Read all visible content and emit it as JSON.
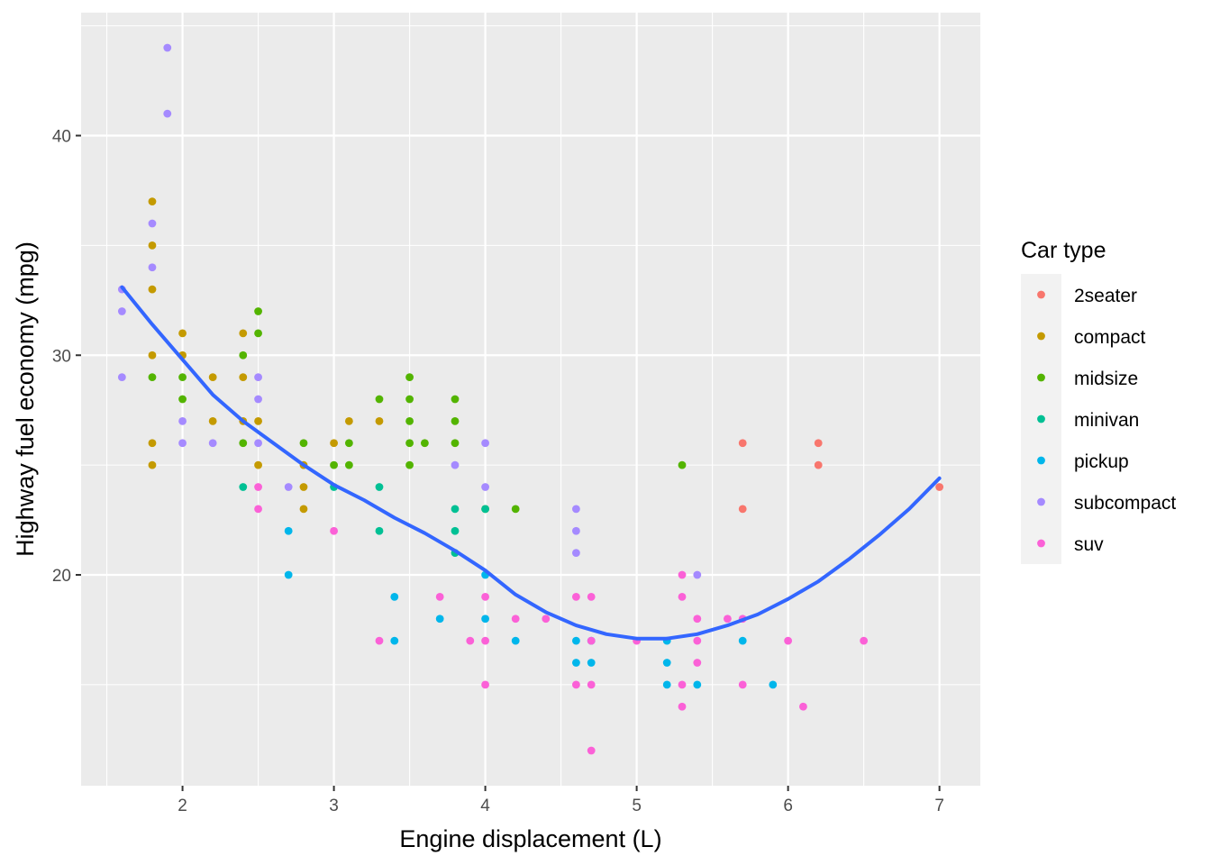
{
  "chart_data": {
    "type": "scatter",
    "xlabel": "Engine displacement (L)",
    "ylabel": "Highway fuel economy (mpg)",
    "xlim": [
      1.33,
      7.27
    ],
    "ylim": [
      10.4,
      45.6
    ],
    "x_ticks": [
      2,
      3,
      4,
      5,
      6,
      7
    ],
    "y_ticks": [
      20,
      30,
      40
    ],
    "x_tick_labels": [
      "2",
      "3",
      "4",
      "5",
      "6",
      "7"
    ],
    "y_tick_labels": [
      "20",
      "30",
      "40"
    ],
    "grid": true,
    "background": "#ebebeb",
    "legend": {
      "title": "Car type",
      "placement": "right",
      "entries": [
        {
          "label": "2seater",
          "color": "#F8766D"
        },
        {
          "label": "compact",
          "color": "#C49A00"
        },
        {
          "label": "midsize",
          "color": "#53B400"
        },
        {
          "label": "minivan",
          "color": "#00C094"
        },
        {
          "label": "pickup",
          "color": "#00B6EB"
        },
        {
          "label": "subcompact",
          "color": "#A58AFF"
        },
        {
          "label": "suv",
          "color": "#FB61D7"
        }
      ]
    },
    "series": [
      {
        "name": "2seater",
        "color": "#F8766D",
        "points": [
          [
            5.7,
            26
          ],
          [
            5.7,
            23
          ],
          [
            6.2,
            26
          ],
          [
            6.2,
            25
          ],
          [
            7.0,
            24
          ]
        ]
      },
      {
        "name": "compact",
        "color": "#C49A00",
        "points": [
          [
            1.8,
            37
          ],
          [
            1.8,
            35
          ],
          [
            1.8,
            33
          ],
          [
            1.8,
            30
          ],
          [
            1.8,
            26
          ],
          [
            1.8,
            25
          ],
          [
            2.0,
            31
          ],
          [
            2.0,
            30
          ],
          [
            2.2,
            29
          ],
          [
            2.2,
            27
          ],
          [
            2.4,
            31
          ],
          [
            2.4,
            29
          ],
          [
            2.4,
            27
          ],
          [
            2.5,
            27
          ],
          [
            2.5,
            25
          ],
          [
            2.8,
            25
          ],
          [
            2.8,
            24
          ],
          [
            2.8,
            23
          ],
          [
            3.0,
            26
          ],
          [
            3.1,
            27
          ],
          [
            3.3,
            27
          ]
        ]
      },
      {
        "name": "midsize",
        "color": "#53B400",
        "points": [
          [
            1.8,
            29
          ],
          [
            2.0,
            29
          ],
          [
            2.0,
            28
          ],
          [
            2.4,
            30
          ],
          [
            2.4,
            26
          ],
          [
            2.5,
            32
          ],
          [
            2.5,
            31
          ],
          [
            2.8,
            26
          ],
          [
            3.0,
            25
          ],
          [
            3.1,
            26
          ],
          [
            3.1,
            25
          ],
          [
            3.3,
            28
          ],
          [
            3.5,
            29
          ],
          [
            3.5,
            28
          ],
          [
            3.5,
            27
          ],
          [
            3.5,
            26
          ],
          [
            3.5,
            25
          ],
          [
            3.6,
            26
          ],
          [
            3.8,
            28
          ],
          [
            3.8,
            27
          ],
          [
            3.8,
            26
          ],
          [
            4.0,
            23
          ],
          [
            4.2,
            23
          ],
          [
            5.3,
            25
          ]
        ]
      },
      {
        "name": "minivan",
        "color": "#00C094",
        "points": [
          [
            2.4,
            24
          ],
          [
            3.0,
            24
          ],
          [
            3.3,
            24
          ],
          [
            3.3,
            22
          ],
          [
            3.8,
            23
          ],
          [
            3.8,
            22
          ],
          [
            3.8,
            21
          ],
          [
            4.0,
            23
          ]
        ]
      },
      {
        "name": "pickup",
        "color": "#00B6EB",
        "points": [
          [
            2.7,
            22
          ],
          [
            2.7,
            20
          ],
          [
            3.4,
            19
          ],
          [
            3.4,
            17
          ],
          [
            3.7,
            18
          ],
          [
            4.0,
            20
          ],
          [
            4.0,
            18
          ],
          [
            4.2,
            17
          ],
          [
            4.6,
            17
          ],
          [
            4.6,
            16
          ],
          [
            4.7,
            17
          ],
          [
            4.7,
            16
          ],
          [
            5.2,
            17
          ],
          [
            5.2,
            16
          ],
          [
            5.2,
            15
          ],
          [
            5.4,
            15
          ],
          [
            5.7,
            17
          ],
          [
            5.9,
            15
          ]
        ]
      },
      {
        "name": "subcompact",
        "color": "#A58AFF",
        "points": [
          [
            1.6,
            33
          ],
          [
            1.6,
            32
          ],
          [
            1.6,
            29
          ],
          [
            1.8,
            36
          ],
          [
            1.8,
            34
          ],
          [
            1.9,
            44
          ],
          [
            1.9,
            41
          ],
          [
            2.0,
            27
          ],
          [
            2.0,
            26
          ],
          [
            2.2,
            26
          ],
          [
            2.5,
            29
          ],
          [
            2.5,
            28
          ],
          [
            2.5,
            26
          ],
          [
            2.7,
            24
          ],
          [
            3.8,
            25
          ],
          [
            4.0,
            26
          ],
          [
            4.0,
            24
          ],
          [
            4.6,
            23
          ],
          [
            4.6,
            22
          ],
          [
            4.6,
            21
          ],
          [
            5.4,
            20
          ]
        ]
      },
      {
        "name": "suv",
        "color": "#FB61D7",
        "points": [
          [
            2.5,
            24
          ],
          [
            2.5,
            23
          ],
          [
            3.0,
            22
          ],
          [
            3.3,
            17
          ],
          [
            3.7,
            19
          ],
          [
            3.9,
            17
          ],
          [
            4.0,
            19
          ],
          [
            4.0,
            17
          ],
          [
            4.0,
            15
          ],
          [
            4.2,
            18
          ],
          [
            4.4,
            18
          ],
          [
            4.6,
            19
          ],
          [
            4.6,
            15
          ],
          [
            4.7,
            19
          ],
          [
            4.7,
            17
          ],
          [
            4.7,
            15
          ],
          [
            4.7,
            12
          ],
          [
            5.0,
            17
          ],
          [
            5.3,
            20
          ],
          [
            5.3,
            19
          ],
          [
            5.3,
            15
          ],
          [
            5.3,
            14
          ],
          [
            5.4,
            18
          ],
          [
            5.4,
            17
          ],
          [
            5.4,
            16
          ],
          [
            5.6,
            18
          ],
          [
            5.7,
            18
          ],
          [
            5.7,
            15
          ],
          [
            6.0,
            17
          ],
          [
            6.1,
            14
          ],
          [
            6.5,
            17
          ]
        ]
      }
    ],
    "smooth": {
      "color": "#3366FF",
      "points": [
        [
          1.6,
          33.1
        ],
        [
          1.8,
          31.4
        ],
        [
          2.0,
          29.8
        ],
        [
          2.2,
          28.2
        ],
        [
          2.4,
          27.0
        ],
        [
          2.6,
          26.0
        ],
        [
          2.8,
          25.0
        ],
        [
          3.0,
          24.1
        ],
        [
          3.2,
          23.4
        ],
        [
          3.4,
          22.6
        ],
        [
          3.6,
          21.9
        ],
        [
          3.8,
          21.1
        ],
        [
          4.0,
          20.2
        ],
        [
          4.2,
          19.1
        ],
        [
          4.4,
          18.3
        ],
        [
          4.6,
          17.7
        ],
        [
          4.8,
          17.3
        ],
        [
          5.0,
          17.1
        ],
        [
          5.2,
          17.1
        ],
        [
          5.4,
          17.3
        ],
        [
          5.6,
          17.7
        ],
        [
          5.8,
          18.2
        ],
        [
          6.0,
          18.9
        ],
        [
          6.2,
          19.7
        ],
        [
          6.4,
          20.7
        ],
        [
          6.6,
          21.8
        ],
        [
          6.8,
          23.0
        ],
        [
          7.0,
          24.4
        ]
      ]
    }
  }
}
